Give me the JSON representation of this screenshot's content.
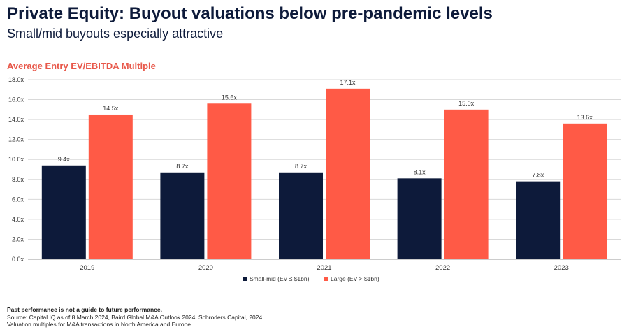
{
  "header": {
    "title": "Private Equity: Buyout valuations below pre-pandemic levels",
    "subtitle": "Small/mid buyouts especially attractive"
  },
  "footnotes": {
    "disclaimer": "Past performance is not a guide to future performance.",
    "source": "Source: Capital IQ as of 8 March 2024, Baird Global M&A Outlook 2024, Schroders Capital, 2024.",
    "note": "Valuation multiples for M&A transactions in North America and Europe."
  },
  "chart_data": {
    "type": "bar",
    "title": "Average Entry EV/EBITDA Multiple",
    "categories": [
      "2019",
      "2020",
      "2021",
      "2022",
      "2023"
    ],
    "series": [
      {
        "name": "Small-mid (EV ≤ $1bn)",
        "color": "#0d1a3a",
        "values": [
          9.4,
          8.7,
          8.7,
          8.1,
          7.8
        ],
        "labels": [
          "9.4x",
          "8.7x",
          "8.7x",
          "8.1x",
          "7.8x"
        ]
      },
      {
        "name": "Large (EV > $1bn)",
        "color": "#ff5a46",
        "values": [
          14.5,
          15.6,
          17.1,
          15.0,
          13.6
        ],
        "labels": [
          "14.5x",
          "15.6x",
          "17.1x",
          "15.0x",
          "13.6x"
        ]
      }
    ],
    "ylim": [
      0,
      18
    ],
    "yticks": [
      0,
      2,
      4,
      6,
      8,
      10,
      12,
      14,
      16,
      18
    ],
    "ytick_labels": [
      "0.0x",
      "2.0x",
      "4.0x",
      "6.0x",
      "8.0x",
      "10.0x",
      "12.0x",
      "14.0x",
      "16.0x",
      "18.0x"
    ],
    "grid": true,
    "legend": "bottom-center"
  }
}
